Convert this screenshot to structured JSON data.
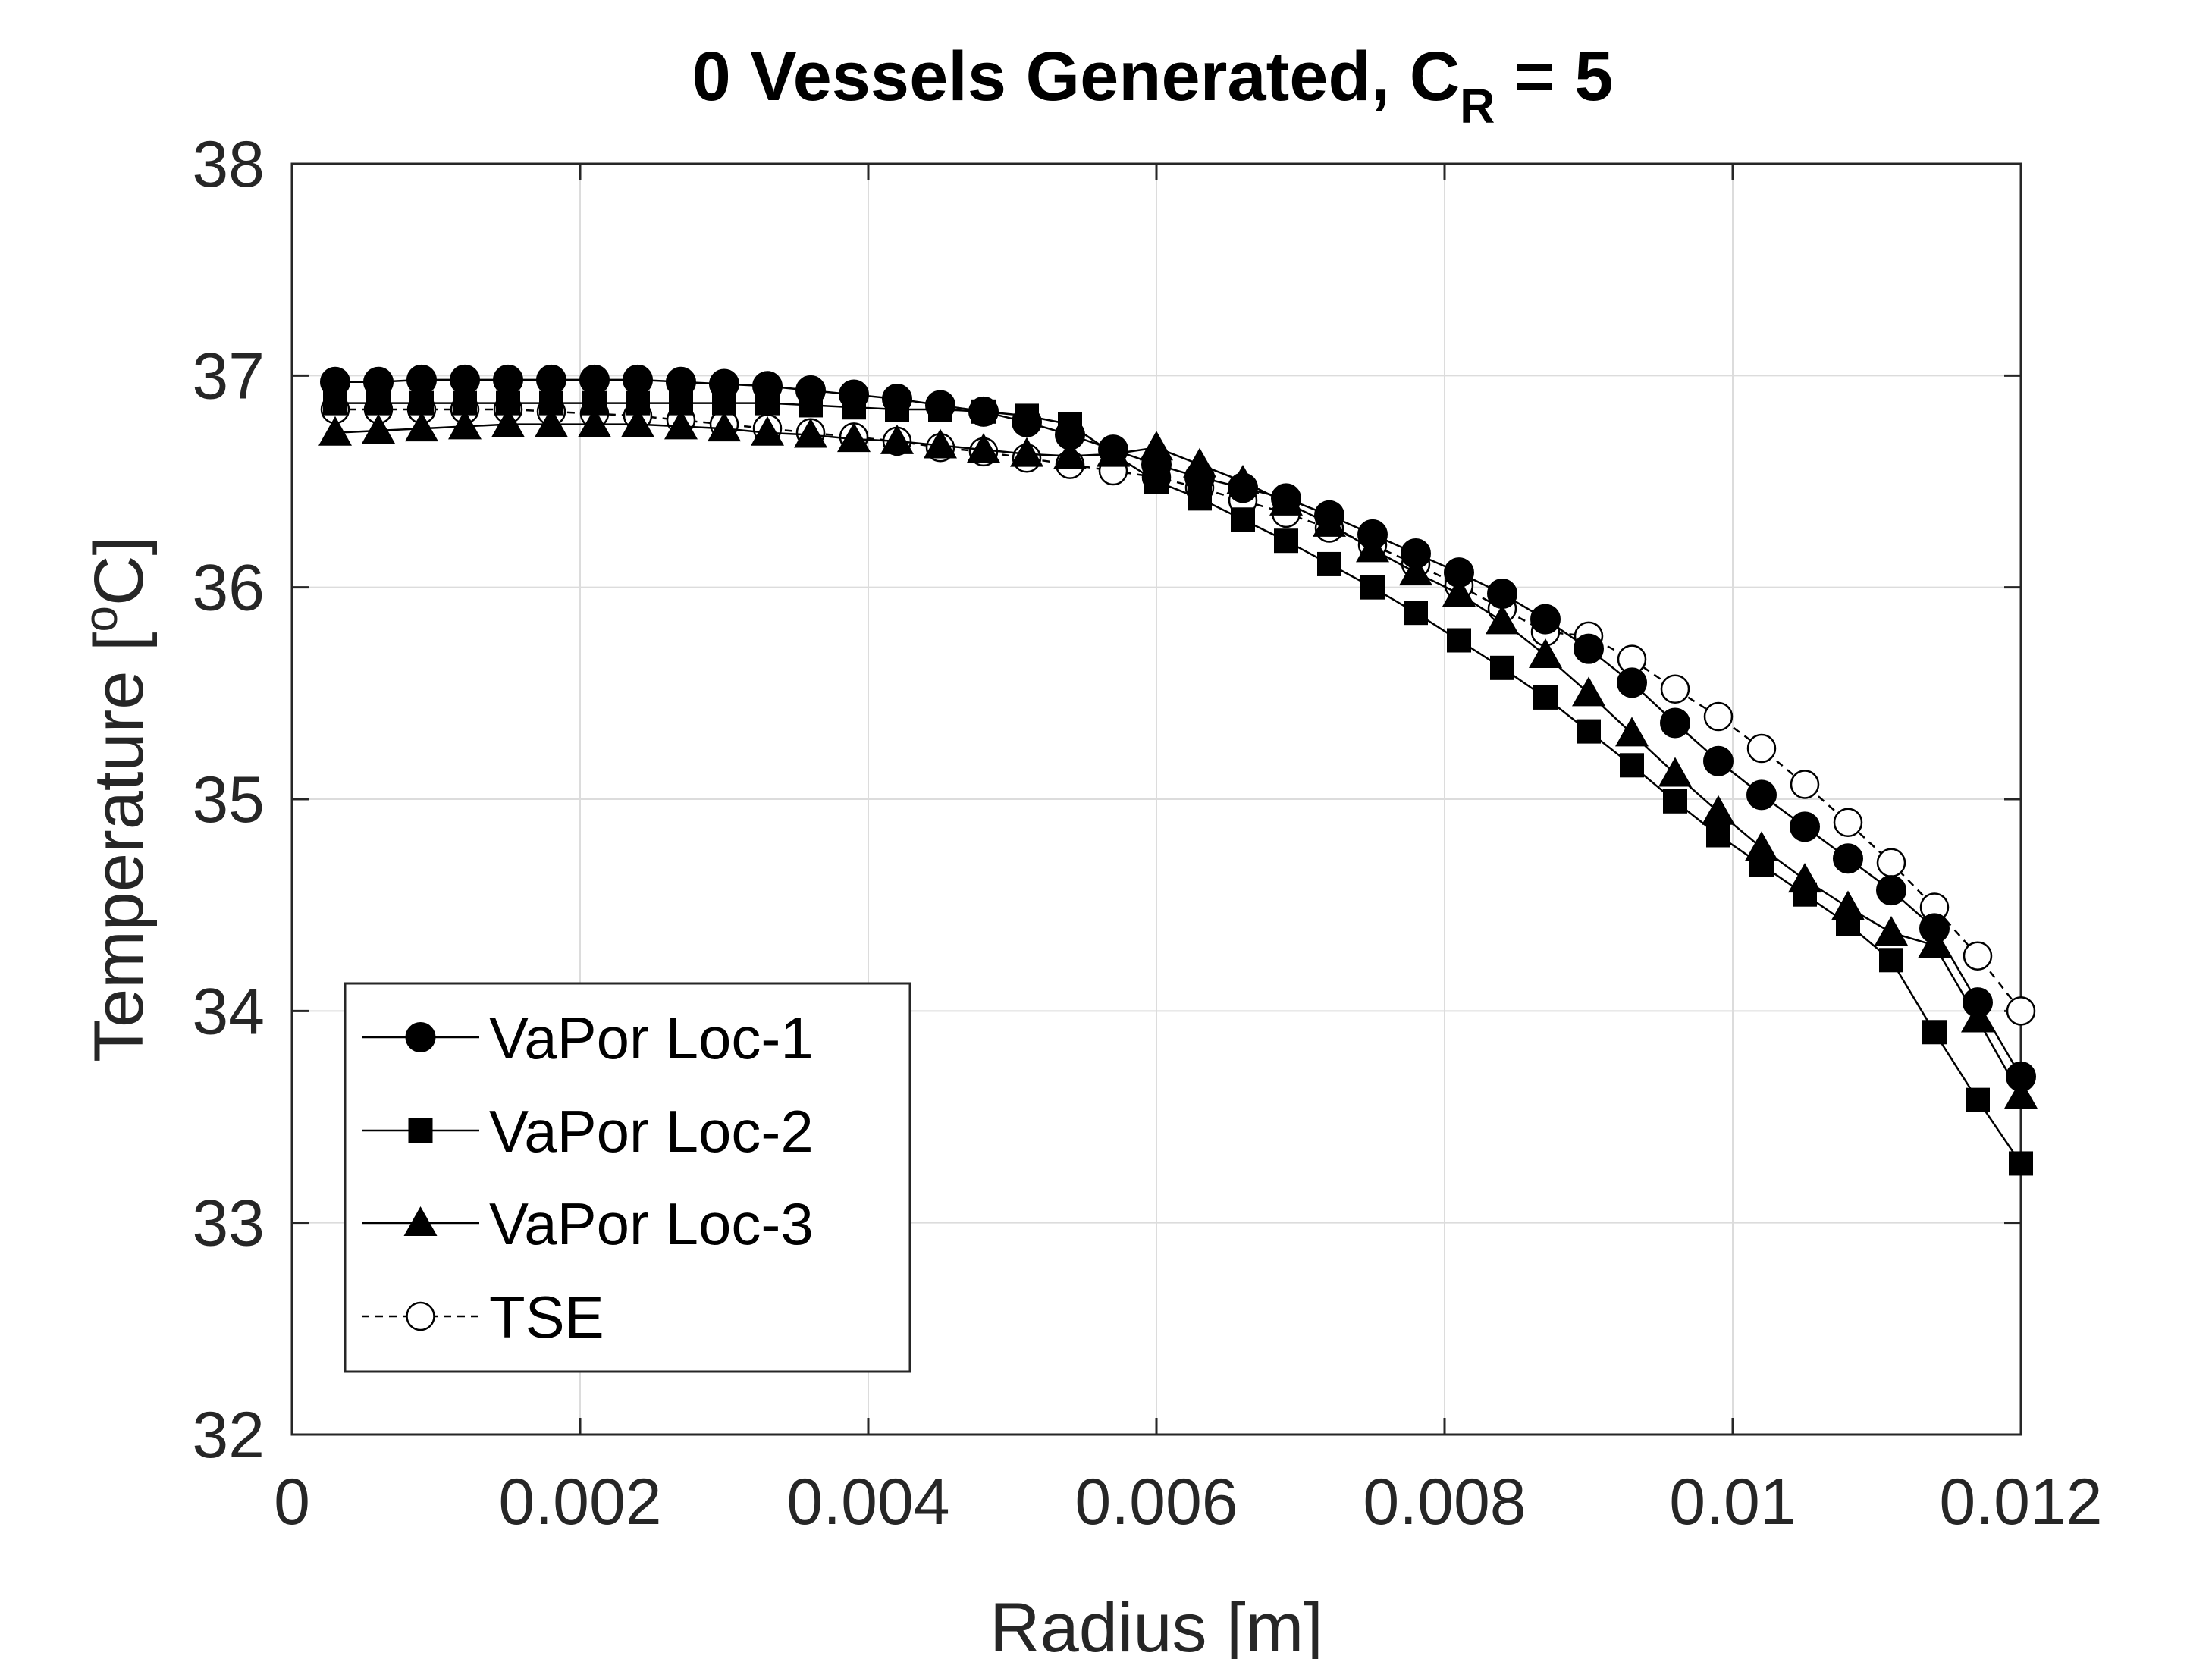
{
  "chart_data": {
    "type": "line",
    "title_main": "0 Vessels Generated, C",
    "title_sub": "R",
    "title_tail": " = 5",
    "xlabel": "Radius [m]",
    "ylabel_pre": "Temperature [",
    "ylabel_sup": "o",
    "ylabel_post": "C]",
    "xlim": [
      0,
      0.012
    ],
    "ylim": [
      32,
      38
    ],
    "xticks": [
      0,
      0.002,
      0.004,
      0.006,
      0.008,
      0.01,
      0.012
    ],
    "xtick_labels": [
      "0",
      "0.002",
      "0.004",
      "0.006",
      "0.008",
      "0.01",
      "0.012"
    ],
    "yticks": [
      32,
      33,
      34,
      35,
      36,
      37,
      38
    ],
    "ytick_labels": [
      "32",
      "33",
      "34",
      "35",
      "36",
      "37",
      "38"
    ],
    "grid": true,
    "legend_position": "lower-left",
    "x": [
      0.0003,
      0.0006,
      0.0009,
      0.0012,
      0.0015,
      0.0018,
      0.0021,
      0.0024,
      0.0027,
      0.003,
      0.0033,
      0.0036,
      0.0039,
      0.0042,
      0.0045,
      0.0048,
      0.0051,
      0.0054,
      0.0057,
      0.006,
      0.0063,
      0.0066,
      0.0069,
      0.0072,
      0.0075,
      0.0078,
      0.0081,
      0.0084,
      0.0087,
      0.009,
      0.0093,
      0.0096,
      0.0099,
      0.0102,
      0.0105,
      0.0108,
      0.0111,
      0.0114,
      0.0117,
      0.012
    ],
    "series": [
      {
        "name": "VaPor Loc-1",
        "marker": "circle-filled",
        "line": "solid",
        "values": [
          36.97,
          36.97,
          36.98,
          36.98,
          36.98,
          36.98,
          36.98,
          36.98,
          36.97,
          36.96,
          36.95,
          36.93,
          36.91,
          36.89,
          36.86,
          36.83,
          36.78,
          36.72,
          36.65,
          36.58,
          36.52,
          36.47,
          36.42,
          36.34,
          36.25,
          36.16,
          36.07,
          35.97,
          35.85,
          35.71,
          35.55,
          35.36,
          35.18,
          35.02,
          34.87,
          34.72,
          34.57,
          34.39,
          34.04,
          33.69
        ]
      },
      {
        "name": "VaPor Loc-2",
        "marker": "square-filled",
        "line": "solid",
        "values": [
          36.87,
          36.87,
          36.87,
          36.87,
          36.87,
          36.87,
          36.87,
          36.87,
          36.87,
          36.87,
          36.87,
          36.86,
          36.85,
          36.84,
          36.84,
          36.83,
          36.81,
          36.77,
          36.63,
          36.5,
          36.42,
          36.32,
          36.22,
          36.11,
          36.0,
          35.88,
          35.75,
          35.62,
          35.48,
          35.32,
          35.16,
          34.99,
          34.83,
          34.69,
          34.55,
          34.41,
          34.24,
          33.9,
          33.58,
          33.28
        ]
      },
      {
        "name": "VaPor Loc-3",
        "marker": "triangle-filled",
        "line": "solid",
        "values": [
          36.73,
          36.74,
          36.75,
          36.76,
          36.77,
          36.77,
          36.77,
          36.77,
          36.76,
          36.75,
          36.73,
          36.72,
          36.7,
          36.69,
          36.67,
          36.65,
          36.63,
          36.62,
          36.63,
          36.66,
          36.58,
          36.5,
          36.4,
          36.3,
          36.18,
          36.07,
          35.97,
          35.84,
          35.68,
          35.5,
          35.31,
          35.12,
          34.94,
          34.77,
          34.62,
          34.49,
          34.37,
          34.31,
          33.96,
          33.6
        ]
      },
      {
        "name": "TSE",
        "marker": "circle-open",
        "line": "dashed",
        "values": [
          36.84,
          36.84,
          36.84,
          36.84,
          36.84,
          36.83,
          36.82,
          36.81,
          36.79,
          36.77,
          36.75,
          36.73,
          36.71,
          36.69,
          36.66,
          36.64,
          36.61,
          36.58,
          36.55,
          36.52,
          36.47,
          36.41,
          36.35,
          36.28,
          36.2,
          36.11,
          36.01,
          35.9,
          35.79,
          35.77,
          35.66,
          35.52,
          35.39,
          35.24,
          35.07,
          34.89,
          34.7,
          34.49,
          34.26,
          34.0
        ]
      }
    ]
  }
}
